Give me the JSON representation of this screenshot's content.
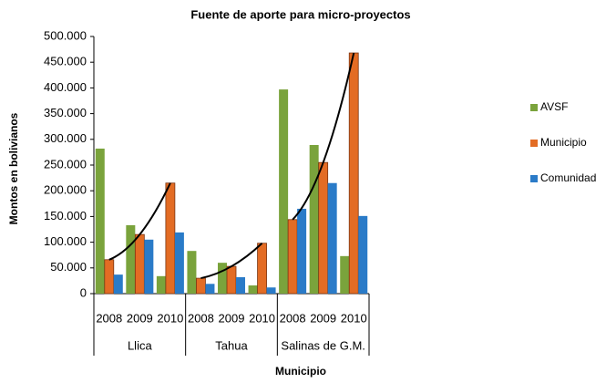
{
  "chart_data": {
    "type": "bar",
    "title": "Fuente de aporte para micro-proyectos",
    "y_label": "Montos  en bolivianos",
    "x_label": "Municipio",
    "categories": [
      "2008",
      "2009",
      "2010",
      "2008",
      "2009",
      "2010",
      "2008",
      "2009",
      "2010"
    ],
    "groups": [
      "Llica",
      "Tahua",
      "Salinas de G.M."
    ],
    "series": [
      {
        "name": "AVSF",
        "color": "#7aa33c",
        "values": [
          282000,
          133000,
          34000,
          83000,
          60000,
          16000,
          397000,
          289000,
          73000
        ]
      },
      {
        "name": "Municipio",
        "color": "#e36c24",
        "values": [
          66000,
          115000,
          215000,
          30000,
          53000,
          98000,
          144000,
          255000,
          468000
        ]
      },
      {
        "name": "Comunidad",
        "color": "#2a7bc8",
        "values": [
          37000,
          105000,
          119000,
          19000,
          32000,
          12000,
          165000,
          215000,
          151000
        ]
      }
    ],
    "ylim": [
      0,
      500000
    ],
    "yticks": [
      0,
      {
        "value": 50000,
        "label": "50.000"
      },
      {
        "value": 100000,
        "label": "100.000"
      },
      {
        "value": 150000,
        "label": "150.000"
      },
      {
        "value": 200000,
        "label": "200.000"
      },
      {
        "value": 250000,
        "label": "250.000"
      },
      {
        "value": 300000,
        "label": "300.000"
      },
      {
        "value": 350000,
        "label": "350.000"
      },
      {
        "value": 400000,
        "label": "400.000"
      },
      {
        "value": 450000,
        "label": "450.000"
      },
      {
        "value": 500000,
        "label": "500.000"
      }
    ],
    "trendline": true,
    "legend": "right"
  }
}
